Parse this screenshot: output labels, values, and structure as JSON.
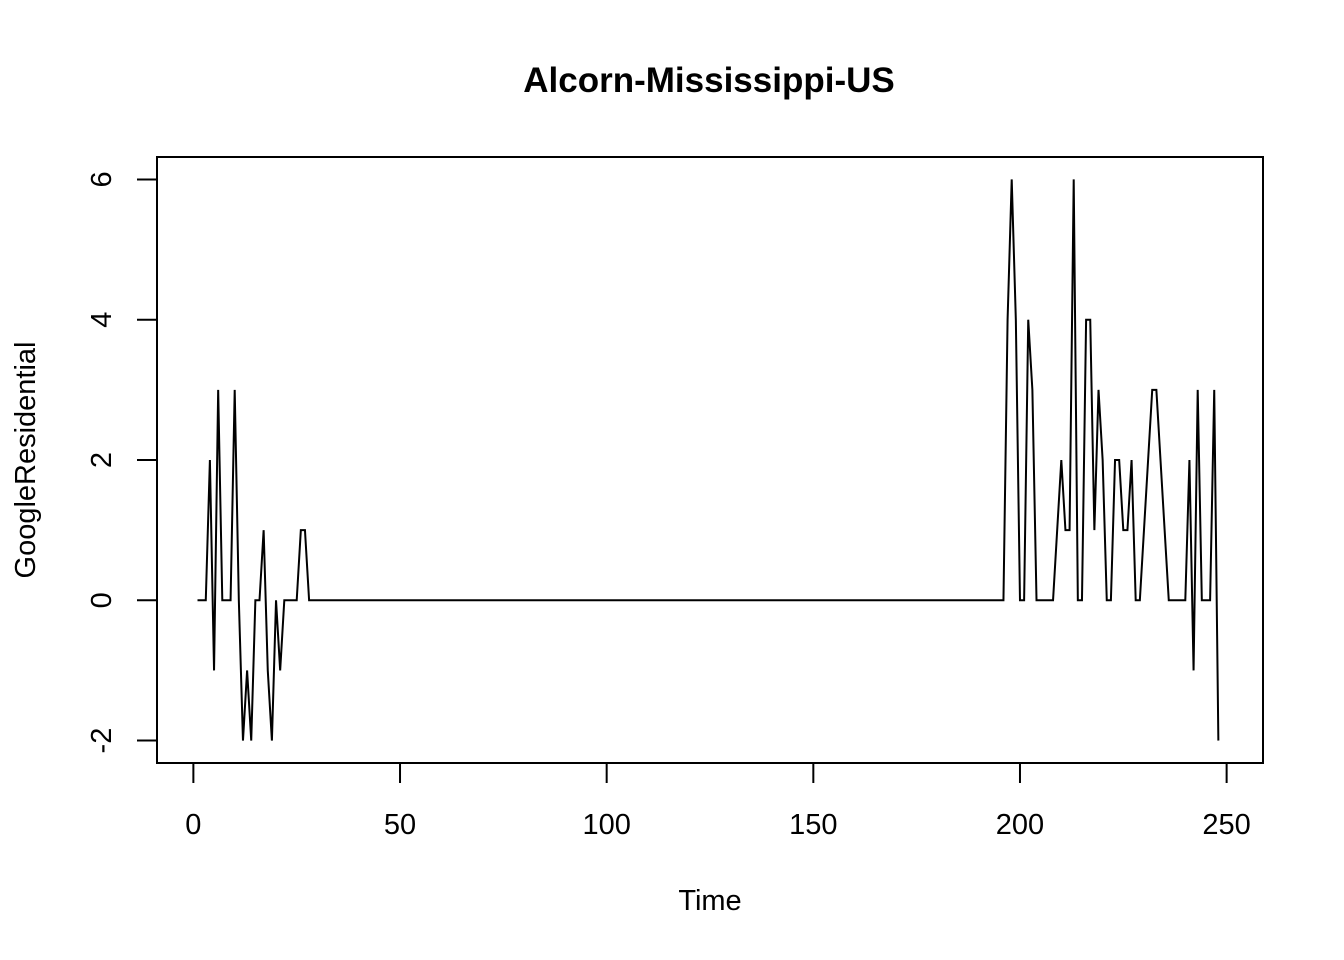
{
  "chart_data": {
    "type": "line",
    "title": "Alcorn-Mississippi-US",
    "xlabel": "Time",
    "ylabel": "GoogleResidential",
    "xlim": [
      -8.8,
      258.8
    ],
    "ylim": [
      -2.32,
      6.32
    ],
    "x_ticks": [
      0,
      50,
      100,
      150,
      200,
      250
    ],
    "y_ticks": [
      -2,
      0,
      2,
      4,
      6
    ],
    "grid": false,
    "legend": "none",
    "line_color": "#000000",
    "series": [
      {
        "x": [
          1,
          2,
          3,
          4,
          5,
          6,
          7,
          8,
          9,
          10,
          11,
          12,
          13,
          14,
          15,
          16,
          17,
          18,
          19,
          20,
          21,
          22,
          23,
          24,
          25,
          26,
          27,
          28,
          29,
          30,
          196,
          197,
          198,
          199,
          200,
          201,
          202,
          203,
          204,
          205,
          206,
          207,
          208,
          209,
          210,
          211,
          212,
          213,
          214,
          215,
          216,
          217,
          218,
          219,
          220,
          221,
          222,
          223,
          224,
          225,
          226,
          227,
          228,
          229,
          230,
          231,
          232,
          233,
          234,
          235,
          236,
          237,
          238,
          239,
          240,
          241,
          242,
          243,
          244,
          245,
          246,
          247,
          248
        ],
        "values": [
          0,
          0,
          0,
          2,
          -1,
          3,
          0,
          0,
          0,
          3,
          0,
          -2,
          -1,
          -2,
          0,
          0,
          1,
          -1,
          -2,
          0,
          -1,
          0,
          0,
          0,
          0,
          1,
          1,
          0,
          0,
          0,
          0,
          4,
          6,
          4,
          0,
          0,
          4,
          3,
          0,
          0,
          0,
          0,
          0,
          1,
          2,
          1,
          1,
          6,
          0,
          0,
          4,
          4,
          1,
          3,
          2,
          0,
          0,
          2,
          2,
          1,
          1,
          2,
          0,
          0,
          1,
          2,
          3,
          3,
          2,
          1,
          0,
          0,
          0,
          0,
          0,
          2,
          -1,
          3,
          0,
          0,
          0,
          3,
          -2
        ]
      }
    ]
  }
}
